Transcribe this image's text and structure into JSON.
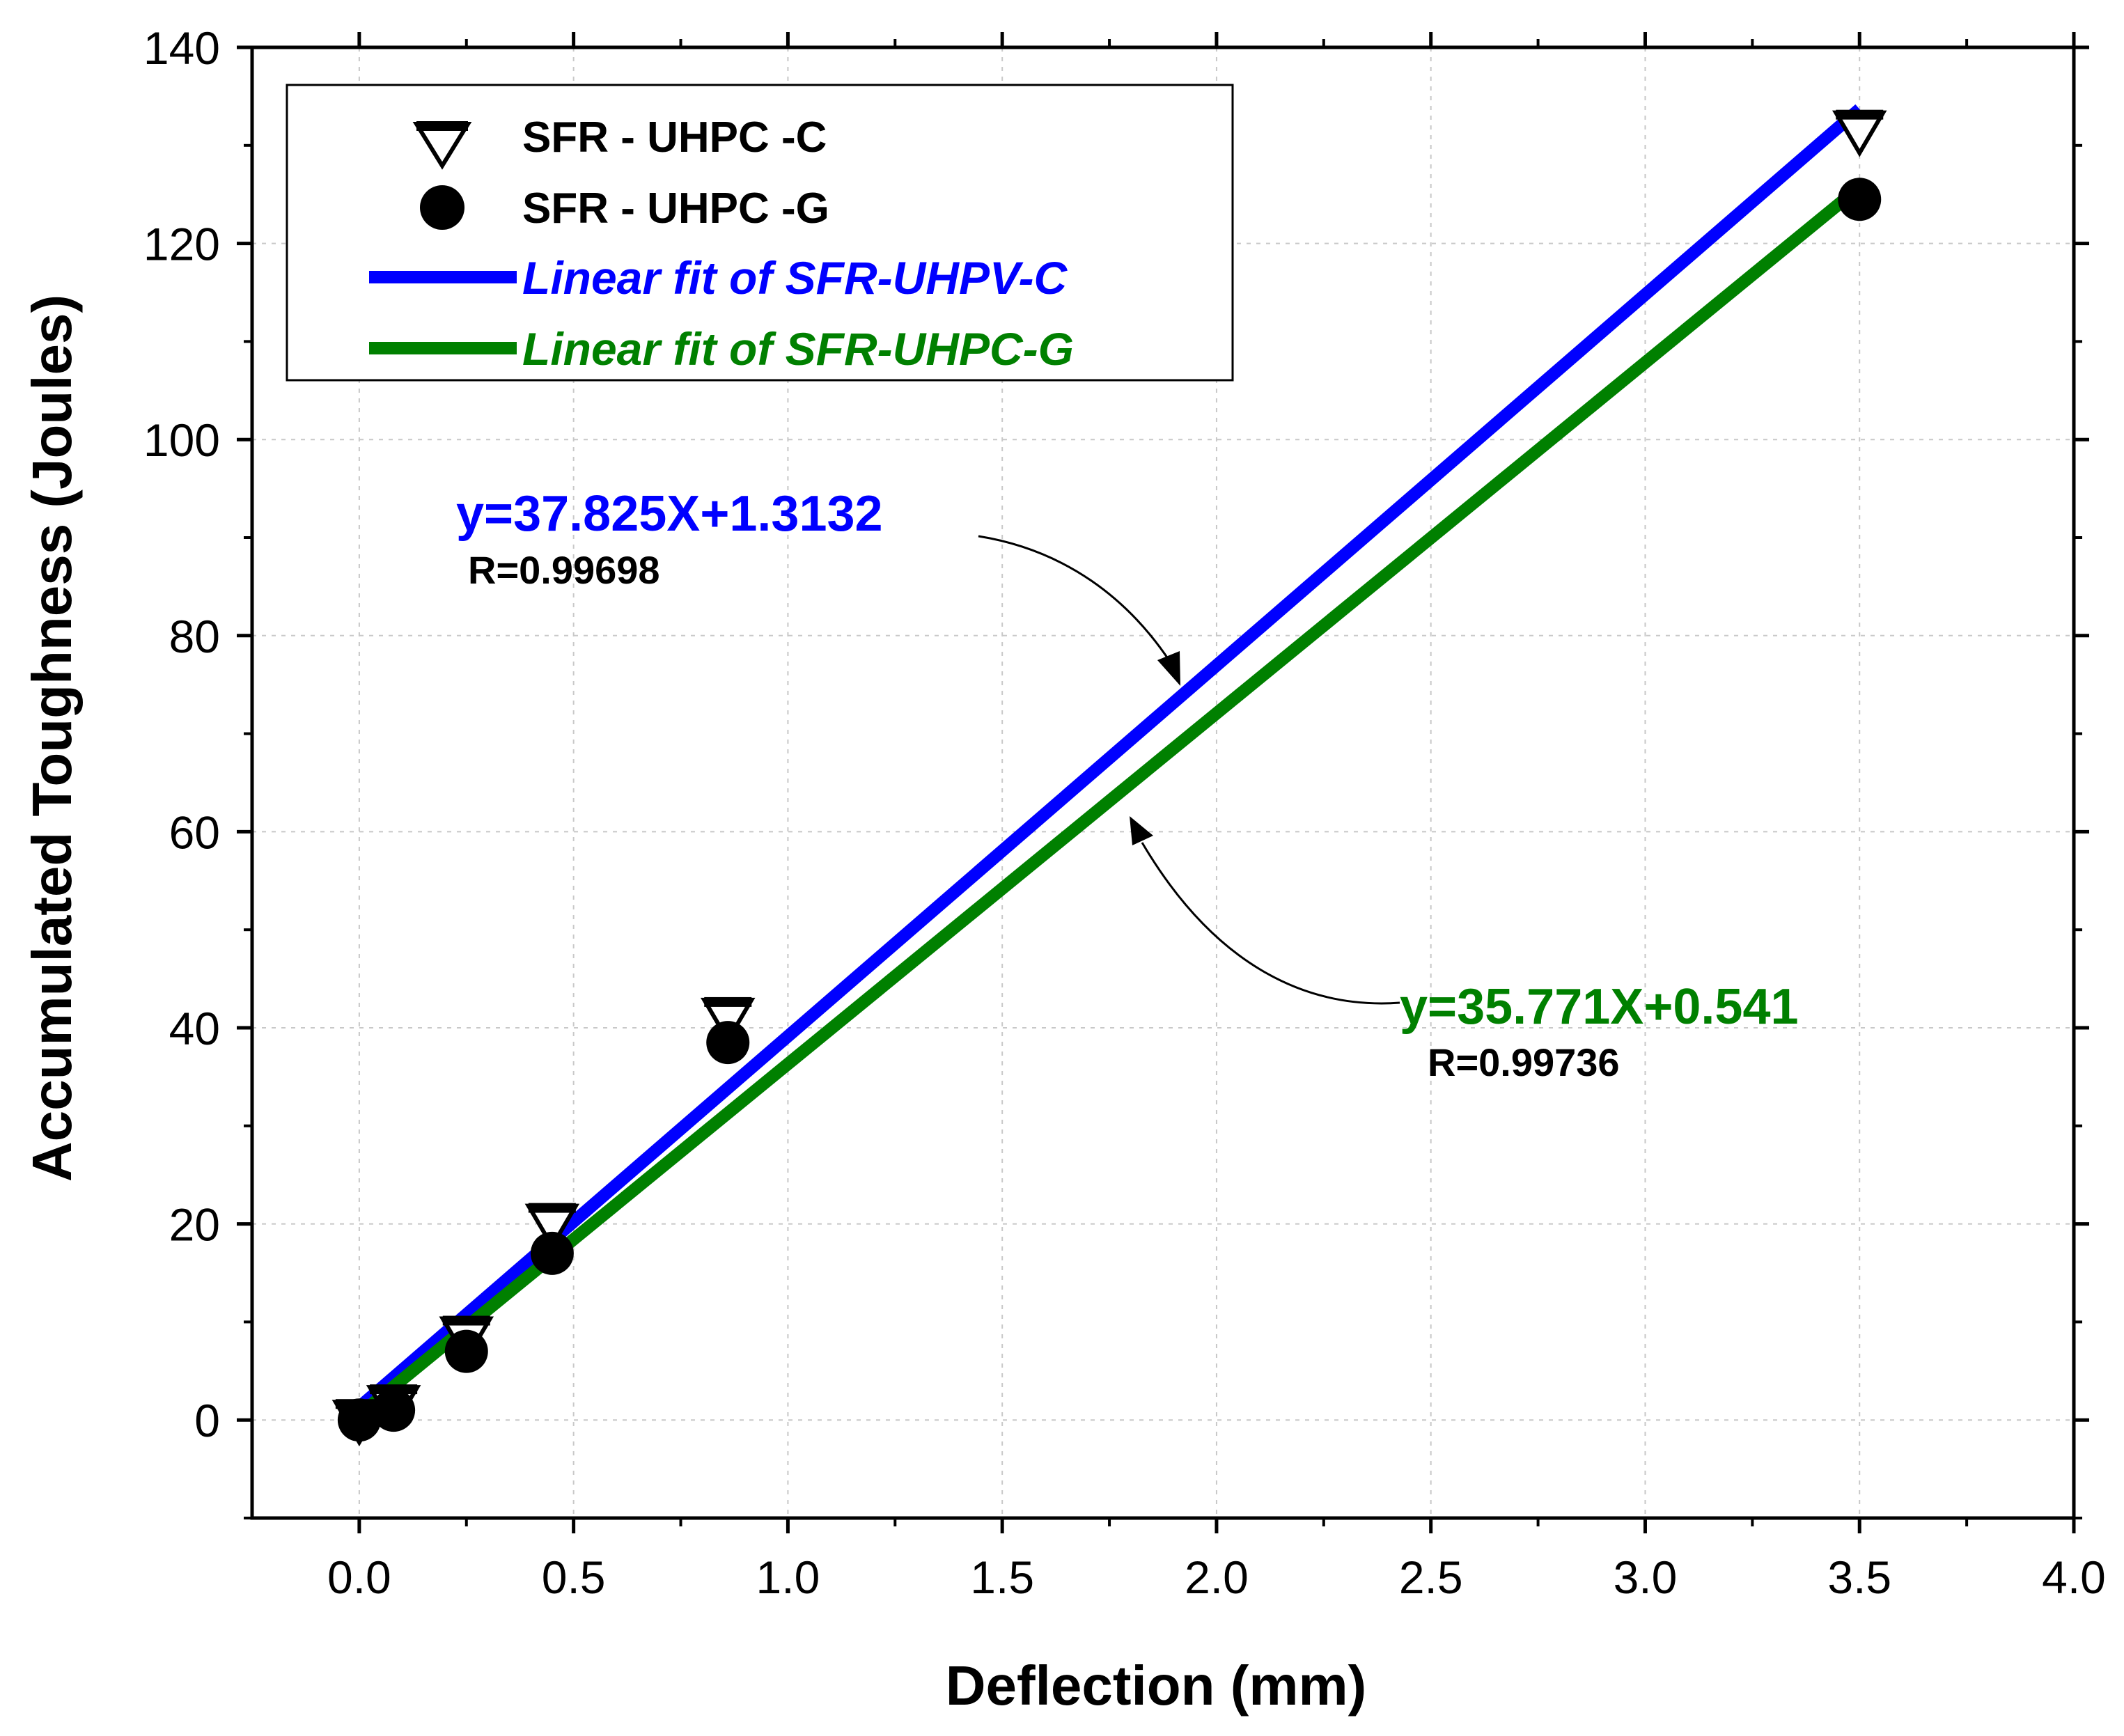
{
  "chart_data": {
    "type": "scatter",
    "title": "",
    "xlabel": "Deflection (mm)",
    "ylabel": "Accumulated Toughness (Joules)",
    "xlim": [
      -0.25,
      4.0
    ],
    "ylim": [
      -10,
      140
    ],
    "xticks": [
      0.0,
      0.5,
      1.0,
      1.5,
      2.0,
      2.5,
      3.0,
      3.5,
      4.0
    ],
    "xtick_labels": [
      "0.0",
      "0.5",
      "1.0",
      "1.5",
      "2.0",
      "2.5",
      "3.0",
      "3.5",
      "4.0"
    ],
    "yticks": [
      0,
      20,
      40,
      60,
      80,
      100,
      120,
      140
    ],
    "ytick_labels": [
      "0",
      "20",
      "40",
      "60",
      "80",
      "100",
      "120",
      "140"
    ],
    "grid": true,
    "legend_position": "top-left",
    "series": [
      {
        "name": "SFR - UHPC -C",
        "marker": "triangle-down-open",
        "color": "#000000",
        "points": [
          [
            0.0,
            0.0
          ],
          [
            0.08,
            1.5
          ],
          [
            0.25,
            8.5
          ],
          [
            0.45,
            20.0
          ],
          [
            0.86,
            41.0
          ],
          [
            3.5,
            131.5
          ]
        ]
      },
      {
        "name": "SFR - UHPC -G",
        "marker": "circle-filled",
        "color": "#000000",
        "points": [
          [
            0.0,
            0.0
          ],
          [
            0.08,
            1.0
          ],
          [
            0.25,
            7.0
          ],
          [
            0.45,
            17.0
          ],
          [
            0.86,
            38.5
          ],
          [
            3.5,
            124.5
          ]
        ]
      }
    ],
    "fits": [
      {
        "name": "Linear fit of SFR-UHPV-C",
        "color": "#0000ff",
        "slope": 37.825,
        "intercept": 1.3132,
        "x_range": [
          0.0,
          3.5
        ],
        "equation": "y=37.825X+1.3132",
        "r_label": "R=0.99698"
      },
      {
        "name": "Linear fit of SFR-UHPC-G",
        "color": "#008000",
        "slope": 35.771,
        "intercept": 0.541,
        "x_range": [
          0.0,
          3.5
        ],
        "equation": "y=35.771X+0.541",
        "r_label": "R=0.99736"
      }
    ]
  }
}
